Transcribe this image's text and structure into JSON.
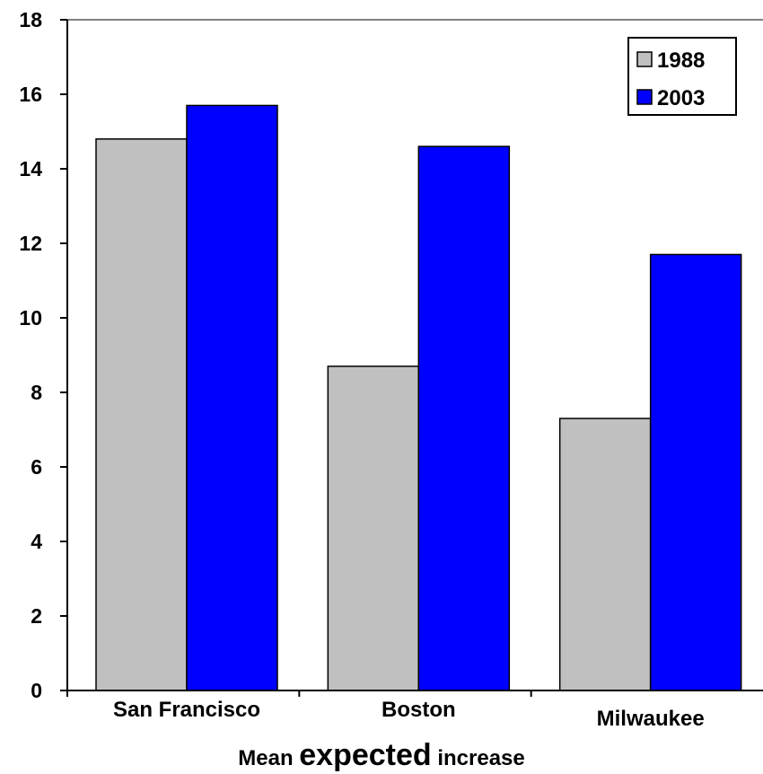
{
  "chart_data": {
    "type": "bar",
    "categories": [
      "San Francisco",
      "Boston",
      "Milwaukee"
    ],
    "series": [
      {
        "name": "1988",
        "values": [
          14.8,
          8.7,
          7.3
        ],
        "color": "#c0c0c0"
      },
      {
        "name": "2003",
        "values": [
          15.7,
          14.6,
          11.7
        ],
        "color": "#0000ff"
      }
    ],
    "ylim": [
      0,
      18
    ],
    "yticks": [
      "0",
      "2",
      "4",
      "6",
      "8",
      "10",
      "12",
      "14",
      "16",
      "18"
    ],
    "xlabel": {
      "pre": "Mean ",
      "emphasis": "expected",
      "post": " increase"
    },
    "legend_position": "top-right",
    "grid": false
  }
}
